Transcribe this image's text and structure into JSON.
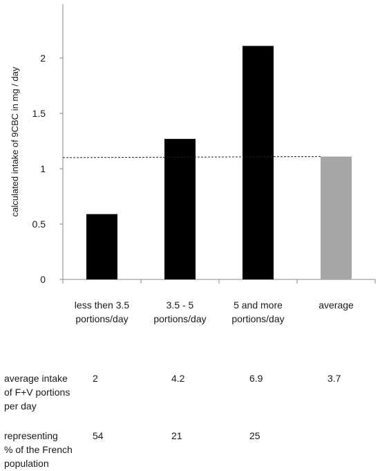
{
  "chart_data": {
    "type": "bar",
    "ylabel": "calculated intake of 9CBC in mg / day",
    "xlabel": "",
    "ylim": [
      0,
      2.5
    ],
    "yticks": [
      "0",
      "0.5",
      "1",
      "1.5",
      "2"
    ],
    "categories": [
      [
        "less then 3.5",
        "portions/day"
      ],
      [
        "3.5 - 5",
        "portions/day"
      ],
      [
        "5 and more",
        "portions/day"
      ],
      [
        "average"
      ]
    ],
    "values": [
      0.59,
      1.27,
      2.11,
      1.11
    ],
    "bar_colors": [
      "#000000",
      "#000000",
      "#000000",
      "#a6a6a6"
    ],
    "reference_line": {
      "value": 1.11,
      "style": "dotted"
    },
    "grid": false,
    "legend": "none"
  },
  "table": {
    "rows": [
      {
        "label": [
          "average intake",
          "of F+V portions",
          "per day"
        ],
        "values": [
          "2",
          "4.2",
          "6.9",
          "3.7"
        ]
      },
      {
        "label": [
          "representing",
          "% of the French",
          "population"
        ],
        "values": [
          "54",
          "21",
          "25",
          ""
        ]
      }
    ]
  }
}
